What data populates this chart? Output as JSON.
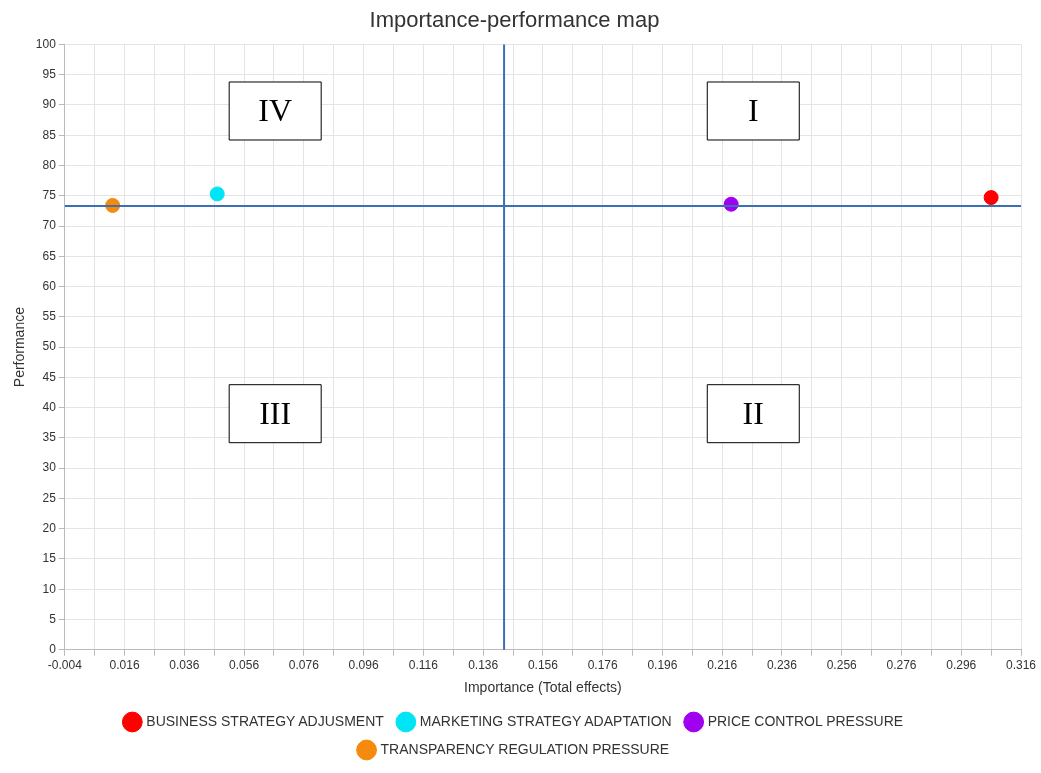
{
  "chart_data": {
    "type": "scatter",
    "title": "Importance-performance map",
    "xlabel": "Importance (Total effects)",
    "ylabel": "Performance",
    "series": [
      {
        "name": "BUSINESS STRATEGY ADJUSMENT",
        "color": "#ff0000",
        "x": [
          0.306
        ],
        "values": [
          74.7
        ]
      },
      {
        "name": "MARKETING STRATEGY ADAPTATION",
        "color": "#00e5f5",
        "x": [
          0.047
        ],
        "values": [
          75.3
        ]
      },
      {
        "name": "PRICE CONTROL PRESSURE",
        "color": "#a000f0",
        "x": [
          0.219
        ],
        "values": [
          73.6
        ]
      },
      {
        "name": "TRANSPARENCY REGULATION PRESSURE",
        "color": "#f58a0c",
        "x": [
          0.012
        ],
        "values": [
          73.4
        ]
      }
    ],
    "xlim": [
      -0.004,
      0.316
    ],
    "xticks": [
      -0.004,
      {
        "value": 0.006,
        "label": null
      },
      0.016,
      {
        "value": 0.026,
        "label": null
      },
      0.036,
      {
        "value": 0.046,
        "label": null
      },
      0.056,
      {
        "value": 0.066,
        "label": null
      },
      0.076,
      {
        "value": 0.086,
        "label": null
      },
      0.096,
      {
        "value": 0.106,
        "label": null
      },
      0.116,
      {
        "value": 0.126,
        "label": null
      },
      0.136,
      {
        "value": 0.146,
        "label": null
      },
      0.156,
      {
        "value": 0.166,
        "label": null
      },
      0.176,
      {
        "value": 0.186,
        "label": null
      },
      0.196,
      {
        "value": 0.206,
        "label": null
      },
      0.216,
      {
        "value": 0.226,
        "label": null
      },
      0.236,
      {
        "value": 0.246,
        "label": null
      },
      0.256,
      {
        "value": 0.266,
        "label": null
      },
      0.276,
      {
        "value": 0.286,
        "label": null
      },
      0.296,
      {
        "value": 0.306,
        "label": null
      },
      0.316
    ],
    "ylim": [
      0,
      100
    ],
    "yticks": [
      0,
      5,
      10,
      15,
      20,
      25,
      30,
      35,
      40,
      45,
      50,
      55,
      60,
      65,
      70,
      75,
      80,
      85,
      90,
      95,
      100
    ],
    "ref_lines": [
      {
        "axis": "x",
        "value": 0.143,
        "color": "#3b6fb6"
      },
      {
        "axis": "y",
        "value": 73.3,
        "color": "#3b6fb6"
      }
    ],
    "annotations": [
      "IV",
      "I",
      "III",
      "II"
    ],
    "grid": true,
    "legend": "bottom",
    "marker": "circle"
  }
}
